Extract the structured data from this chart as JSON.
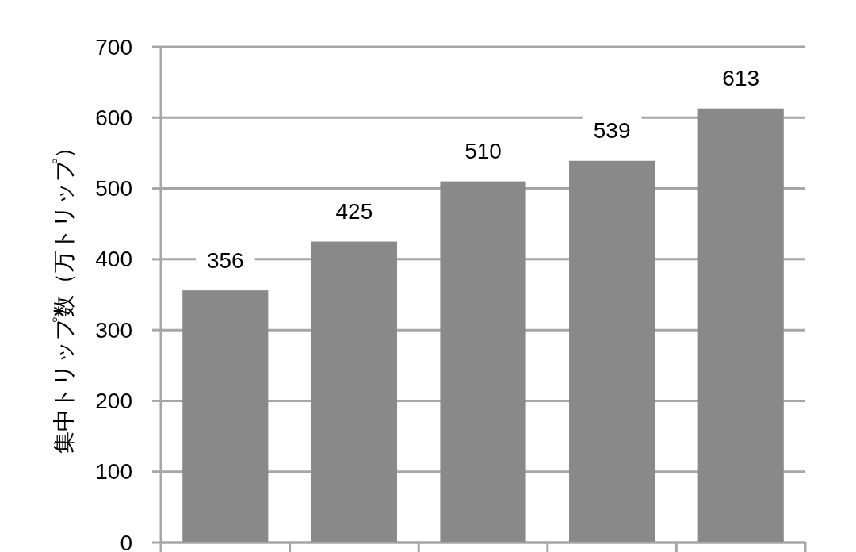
{
  "chart_data": {
    "type": "bar",
    "ylabel": "集中トリップ数（万トリップ）",
    "categories": [
      null,
      null,
      null,
      null,
      null
    ],
    "values": [
      356,
      425,
      510,
      539,
      613
    ],
    "color": "#898989",
    "ylim": [
      0,
      700
    ],
    "yticks": [
      0,
      100,
      200,
      300,
      400,
      500,
      600,
      700
    ],
    "grid": "y",
    "data_labels": true
  }
}
